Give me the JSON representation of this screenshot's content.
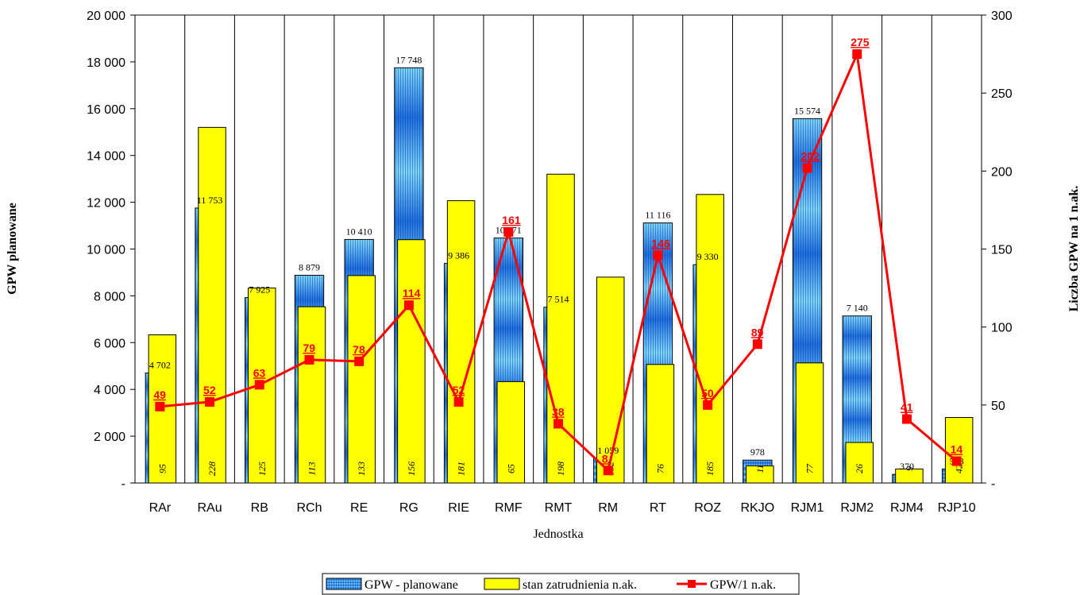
{
  "chart_data": {
    "type": "bar",
    "categories": [
      "RAr",
      "RAu",
      "RB",
      "RCh",
      "RE",
      "RG",
      "RIE",
      "RMF",
      "RMT",
      "RM",
      "RT",
      "ROZ",
      "RKJO",
      "RJM1",
      "RJM2",
      "RJM4",
      "RJP10"
    ],
    "series": [
      {
        "name": "GPW - planowane",
        "type": "bar",
        "axis": "left",
        "values": [
          4702,
          11753,
          7925,
          8879,
          10410,
          17748,
          9386,
          10471,
          7514,
          1059,
          11116,
          9330,
          978,
          15574,
          7140,
          370,
          598
        ],
        "labels": [
          "4 702",
          "11 753",
          "7 925",
          "8 879",
          "10 410",
          "17 748",
          "9 386",
          "10 471",
          "7 514",
          "1 059",
          "11 116",
          "9 330",
          "978",
          "15 574",
          "7 140",
          "370",
          "598"
        ]
      },
      {
        "name": "stan zatrudnienia n.ak.",
        "type": "bar",
        "axis": "right",
        "values": [
          95,
          228,
          125,
          113,
          133,
          156,
          181,
          65,
          198,
          132,
          76,
          185,
          11,
          77,
          26,
          9,
          42
        ],
        "labels": [
          "95",
          "228",
          "125",
          "113",
          "133",
          "156",
          "181",
          "65",
          "198",
          "132",
          "76",
          "185",
          "11",
          "77",
          "26",
          "9",
          "42"
        ]
      },
      {
        "name": "GPW/1 n.ak.",
        "type": "line",
        "axis": "right",
        "values": [
          49,
          52,
          63,
          79,
          78,
          114,
          52,
          161,
          38,
          8,
          146,
          50,
          89,
          202,
          275,
          41,
          14
        ],
        "labels": [
          "49",
          "52",
          "63",
          "79",
          "78",
          "114",
          "52",
          "161",
          "38",
          "8",
          "146",
          "50",
          "89",
          "202",
          "275",
          "41",
          "14"
        ]
      }
    ],
    "xlabel": "Jednostka",
    "ylabel": "GPW planowane",
    "y2label": "Liczba GPW na 1 n.ak.",
    "ylim": [
      0,
      20000
    ],
    "y2lim": [
      0,
      300
    ],
    "yticks": [
      "-",
      "2 000",
      "4 000",
      "6 000",
      "8 000",
      "10 000",
      "12 000",
      "14 000",
      "16 000",
      "18 000",
      "20 000"
    ],
    "y2ticks": [
      "-",
      "50",
      "100",
      "150",
      "200",
      "250",
      "300"
    ],
    "grid": "vertical",
    "legend_position": "bottom",
    "colors": {
      "gpw_bar": "#1e90ff",
      "gpw_bar_dark": "#0a5fc8",
      "emp_bar": "#ffff00",
      "ratio_line": "#ff0000"
    }
  }
}
